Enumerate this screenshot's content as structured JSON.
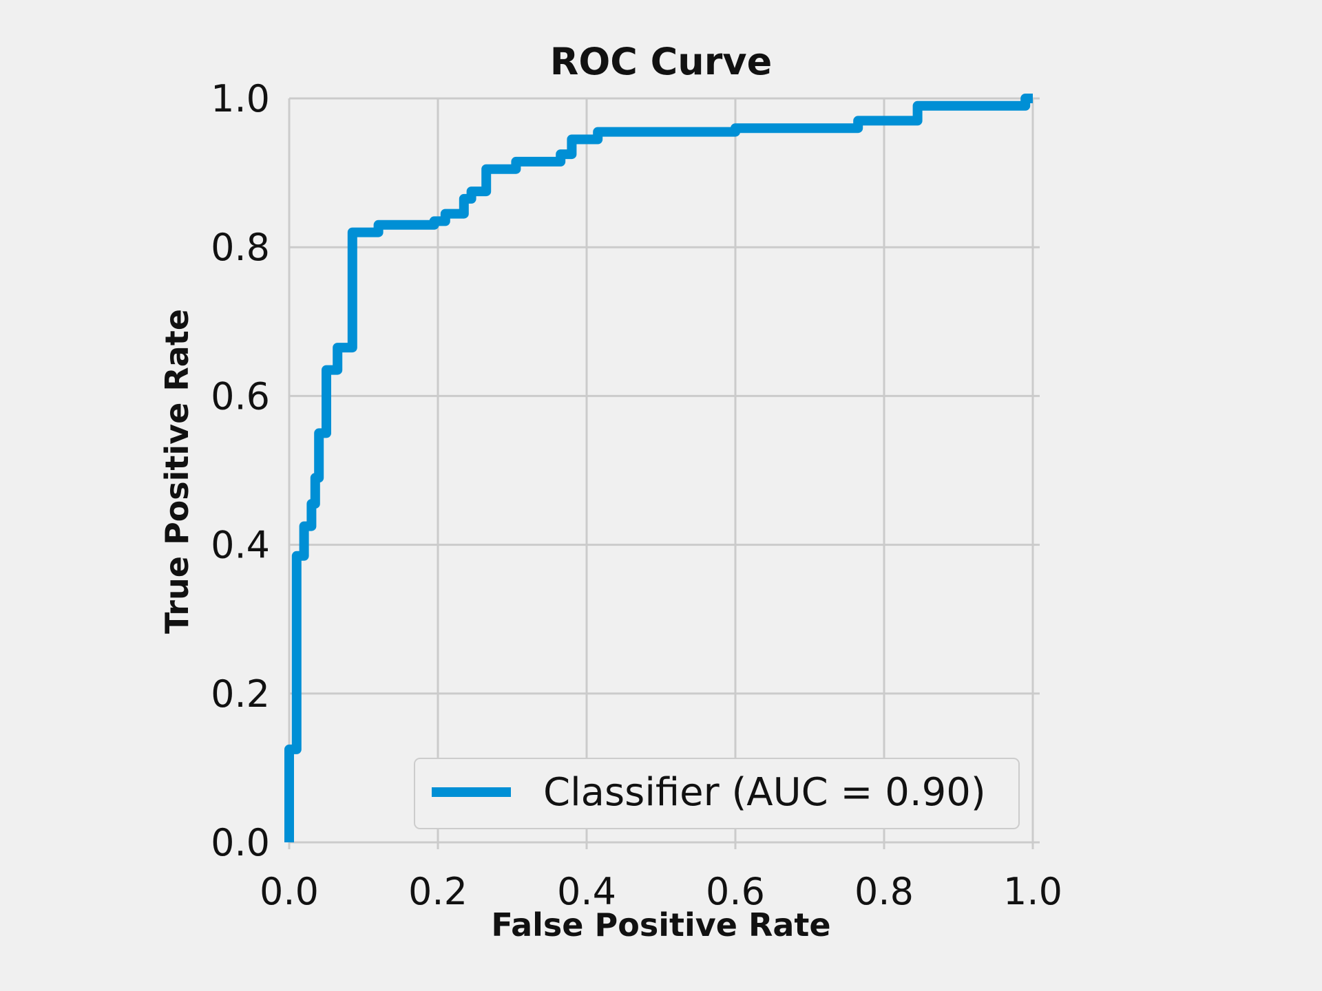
{
  "chart_data": {
    "type": "line",
    "title": "ROC Curve",
    "xlabel": "False Positive Rate",
    "ylabel": "True Positive Rate",
    "xlim": [
      0.0,
      1.0
    ],
    "ylim": [
      0.0,
      1.0
    ],
    "xticks": [
      "0.0",
      "0.2",
      "0.4",
      "0.6",
      "0.8",
      "1.0"
    ],
    "yticks": [
      "0.0",
      "0.2",
      "0.4",
      "0.6",
      "0.8",
      "1.0"
    ],
    "grid": true,
    "legend_position": "lower-right",
    "colors": {
      "line": "#008fd5",
      "grid": "#cbcbcb",
      "background": "#f0f0f0"
    },
    "series": [
      {
        "name": "Classifier (AUC = 0.90)",
        "x": [
          0.0,
          0.0,
          0.01,
          0.01,
          0.02,
          0.02,
          0.03,
          0.03,
          0.035,
          0.035,
          0.04,
          0.04,
          0.05,
          0.05,
          0.065,
          0.065,
          0.085,
          0.085,
          0.12,
          0.12,
          0.195,
          0.195,
          0.21,
          0.21,
          0.235,
          0.235,
          0.245,
          0.245,
          0.265,
          0.265,
          0.305,
          0.305,
          0.365,
          0.365,
          0.38,
          0.38,
          0.415,
          0.415,
          0.6,
          0.6,
          0.765,
          0.765,
          0.845,
          0.845,
          0.99,
          0.99,
          1.0
        ],
        "y": [
          0.0,
          0.125,
          0.125,
          0.385,
          0.385,
          0.425,
          0.425,
          0.455,
          0.455,
          0.49,
          0.49,
          0.55,
          0.55,
          0.635,
          0.635,
          0.665,
          0.665,
          0.82,
          0.82,
          0.83,
          0.83,
          0.835,
          0.835,
          0.845,
          0.845,
          0.865,
          0.865,
          0.875,
          0.875,
          0.905,
          0.905,
          0.915,
          0.915,
          0.925,
          0.925,
          0.945,
          0.945,
          0.955,
          0.955,
          0.96,
          0.96,
          0.97,
          0.97,
          0.99,
          0.99,
          1.0,
          1.0
        ]
      }
    ]
  }
}
